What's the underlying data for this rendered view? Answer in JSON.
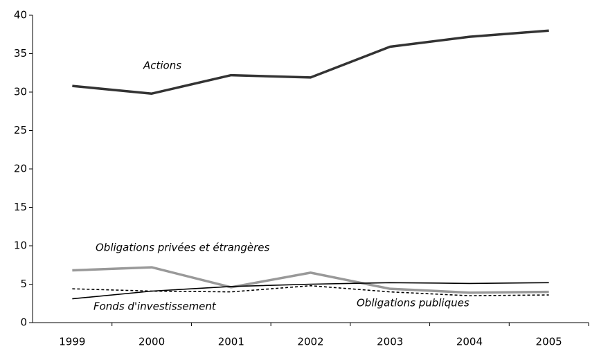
{
  "chart_data": {
    "type": "line",
    "categories": [
      "1999",
      "2000",
      "2001",
      "2002",
      "2003",
      "2004",
      "2005"
    ],
    "series": [
      {
        "name": "Actions",
        "color": "#333333",
        "style": "thick",
        "values": [
          30.8,
          29.8,
          32.2,
          31.9,
          35.9,
          37.2,
          38.0
        ]
      },
      {
        "name": "Obligations privées et étrangères",
        "color": "#999999",
        "style": "thick",
        "values": [
          6.8,
          7.2,
          4.6,
          6.5,
          4.4,
          3.9,
          4.0
        ]
      },
      {
        "name": "Fonds d'investissement",
        "color": "#000000",
        "style": "thin",
        "values": [
          3.1,
          4.1,
          4.7,
          5.0,
          5.2,
          5.1,
          5.2
        ]
      },
      {
        "name": "Obligations publiques",
        "color": "#000000",
        "style": "dotted",
        "values": [
          4.4,
          4.1,
          4.0,
          4.8,
          4.0,
          3.5,
          3.6
        ]
      }
    ],
    "ylim": [
      0,
      40
    ],
    "yticks": [
      0,
      5,
      10,
      15,
      20,
      25,
      30,
      35,
      40
    ],
    "grid": false
  }
}
